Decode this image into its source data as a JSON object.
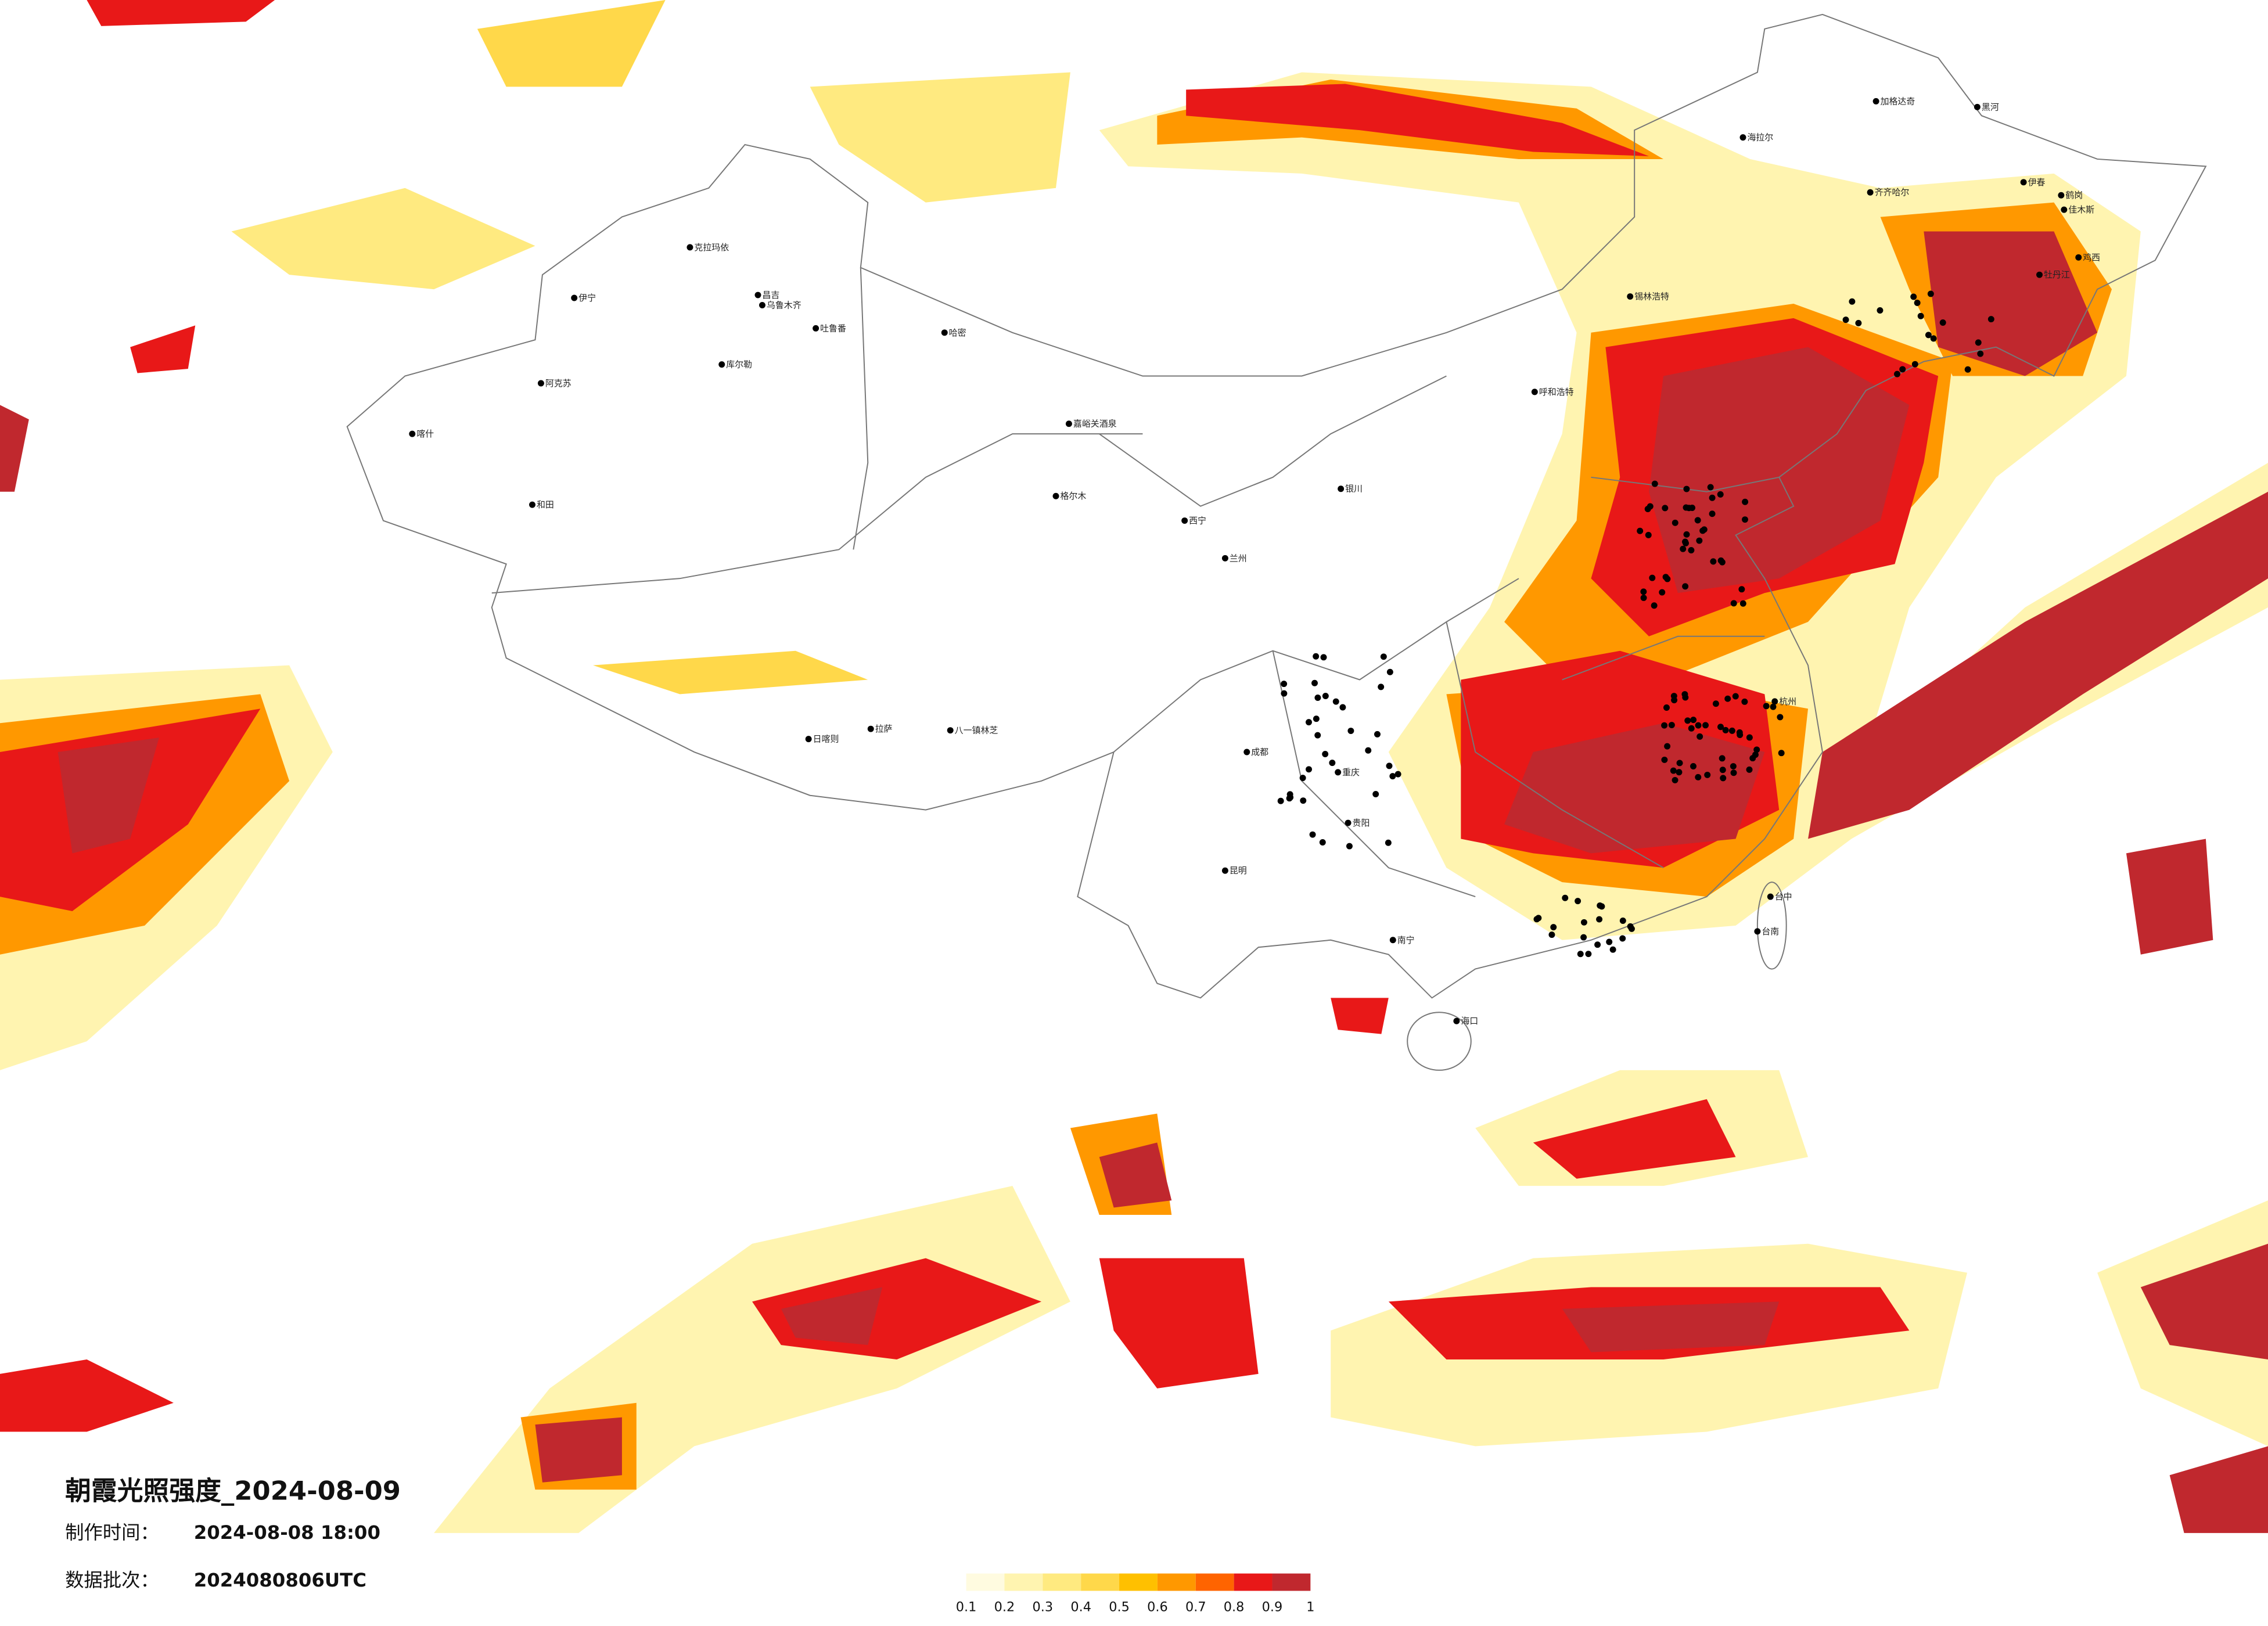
{
  "title": "朝霞光照强度_2024-08-09",
  "made_label": "制作时间：",
  "made_time": "2024-08-08 18:00",
  "batch_label": "数据批次：",
  "batch": "2024080806UTC",
  "legend": {
    "ticks": [
      0.1,
      0.2,
      0.3,
      0.4,
      0.5,
      0.6,
      0.7,
      0.8,
      0.9,
      1
    ],
    "colors": [
      "#fffbe0",
      "#fff4b0",
      "#ffea80",
      "#ffd84a",
      "#ffc000",
      "#ff9800",
      "#ff6400",
      "#e81818",
      "#c0282e"
    ]
  },
  "cities": [
    "加格达奇",
    "黑河",
    "海拉尔",
    "齐齐哈尔",
    "伊春",
    "鹤岗",
    "佳木斯",
    "鸡西",
    "牡丹江",
    "锡林浩特",
    "呼和浩特",
    "克拉玛依",
    "伊宁",
    "昌吉",
    "乌鲁木齐",
    "吐鲁番",
    "哈密",
    "库尔勒",
    "阿克苏",
    "喀什",
    "和田",
    "嘉峪关酒泉",
    "西宁",
    "兰州",
    "银川",
    "格尔木",
    "日喀则",
    "拉萨",
    "八一镇林芝",
    "成都",
    "重庆",
    "贵阳",
    "昆明",
    "南宁",
    "海口",
    "杭州",
    "台中",
    "台南"
  ]
}
